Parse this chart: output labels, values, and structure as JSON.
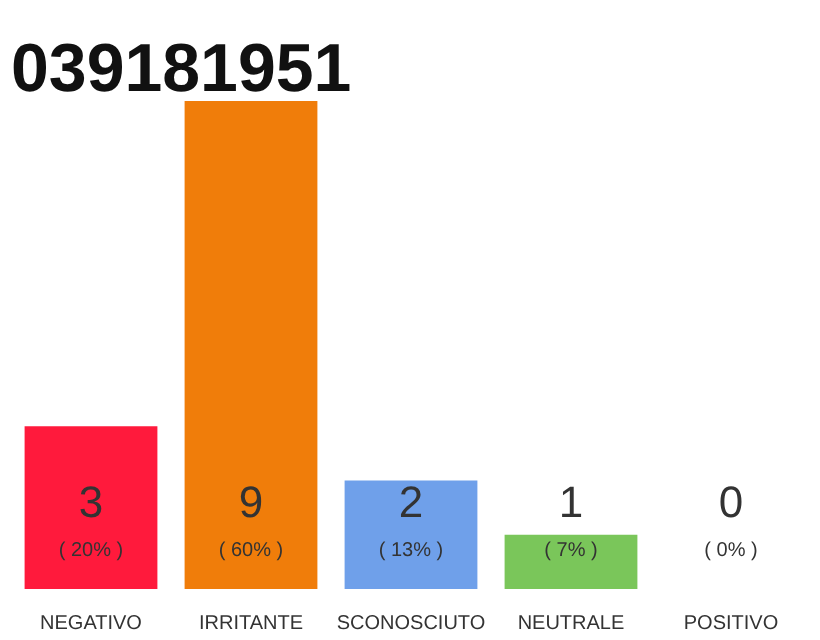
{
  "chart_data": {
    "type": "bar",
    "title": "039181951",
    "categories": [
      "NEGATIVO",
      "IRRITANTE",
      "SCONOSCIUTO",
      "NEUTRALE",
      "POSITIVO"
    ],
    "values": [
      3,
      9,
      2,
      1,
      0
    ],
    "colors": [
      "#ff1a3c",
      "#f07d0a",
      "#6fa0ea",
      "#7ac65a",
      "#cccccc"
    ],
    "data_labels": true,
    "annotations": [
      "( 20% )",
      "( 60% )",
      "( 13% )",
      "( 7% )",
      "( 0% )"
    ],
    "grid": false
  }
}
